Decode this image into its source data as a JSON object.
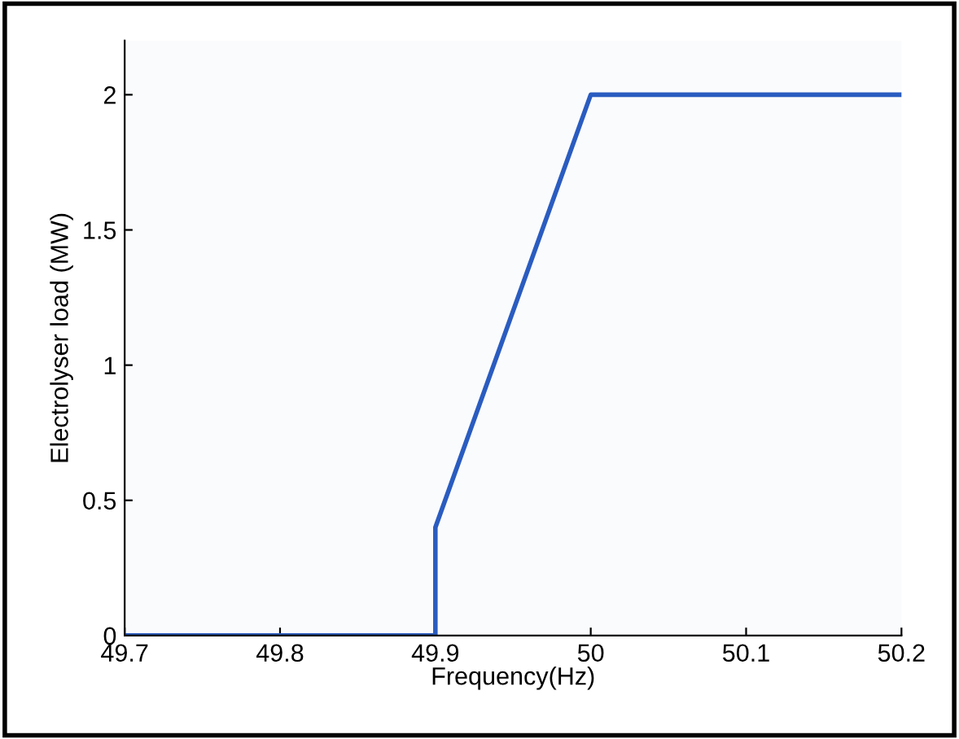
{
  "chart_data": {
    "type": "line",
    "xlabel": "Frequency(Hz)",
    "ylabel": "Electrolyser load (MW)",
    "x": [
      49.7,
      49.9,
      49.9,
      50.0,
      50.2
    ],
    "series": [
      {
        "color": "#2a5cc0",
        "values": [
          0,
          0,
          0.4,
          2,
          2
        ]
      }
    ],
    "xlim": [
      49.7,
      50.2
    ],
    "xticks": [
      49.7,
      49.8,
      49.9,
      50,
      50.1,
      50.2
    ],
    "ylim": [
      0,
      2.2
    ],
    "yticks": [
      0,
      0.5,
      1,
      1.5,
      2
    ],
    "grid": false,
    "marker": "none",
    "line_style": "solid"
  }
}
